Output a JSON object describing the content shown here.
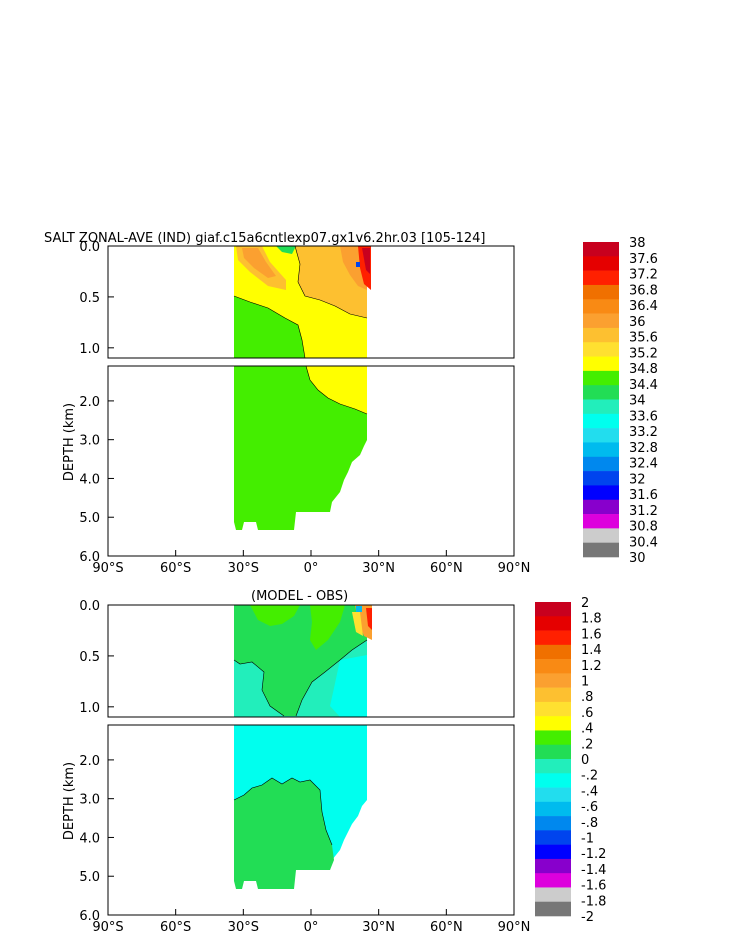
{
  "chart_data": [
    {
      "type": "heatmap",
      "title": "SALT ZONAL-AVE (IND) giaf.c15a6cntlexp07.gx1v6.2hr.03 [105-124]",
      "ylabel": "DEPTH (km)",
      "x_tick_labels": [
        "90°S",
        "60°S",
        "30°S",
        "0°",
        "30°N",
        "60°N",
        "90°N"
      ],
      "y_tick_labels_upper": [
        "0.0",
        "0.5",
        "1.0"
      ],
      "y_tick_labels_lower": [
        "2.0",
        "3.0",
        "4.0",
        "5.0",
        "6.0"
      ],
      "xlim": [
        -90,
        90
      ],
      "ylim": [
        0,
        6
      ],
      "colorbar_labels": [
        "38",
        "37.6",
        "37.2",
        "36.8",
        "36.4",
        "36",
        "35.6",
        "35.2",
        "34.8",
        "34.4",
        "34",
        "33.6",
        "33.2",
        "32.8",
        "32.4",
        "32",
        "31.6",
        "31.2",
        "30.8",
        "30.4",
        "30"
      ],
      "colorbar_colors": [
        "#c8001e",
        "#e50000",
        "#ff2000",
        "#f07000",
        "#f98a14",
        "#fba030",
        "#fdc030",
        "#ffe030",
        "#ffff00",
        "#44ee00",
        "#22dd55",
        "#22eebb",
        "#00ffee",
        "#22ddee",
        "#00bbee",
        "#0088ee",
        "#0044ee",
        "#0000ff",
        "#8800cc",
        "#dd00dd",
        "#cccccc",
        "#777777"
      ]
    },
    {
      "type": "heatmap",
      "title": "(MODEL - OBS)",
      "ylabel": "DEPTH (km)",
      "x_tick_labels": [
        "90°S",
        "60°S",
        "30°S",
        "0°",
        "30°N",
        "60°N",
        "90°N"
      ],
      "y_tick_labels_upper": [
        "0.0",
        "0.5",
        "1.0"
      ],
      "y_tick_labels_lower": [
        "2.0",
        "3.0",
        "4.0",
        "5.0",
        "6.0"
      ],
      "xlim": [
        -90,
        90
      ],
      "ylim": [
        0,
        6
      ],
      "colorbar_labels": [
        "2",
        "1.8",
        "1.6",
        "1.4",
        "1.2",
        "1",
        ".8",
        ".6",
        ".4",
        ".2",
        "0",
        "-.2",
        "-.4",
        "-.6",
        "-.8",
        "-1",
        "-1.2",
        "-1.4",
        "-1.6",
        "-1.8",
        "-2"
      ],
      "colorbar_colors": [
        "#c8001e",
        "#e50000",
        "#ff2000",
        "#f07000",
        "#f98a14",
        "#fba030",
        "#fdc030",
        "#ffe030",
        "#ffff00",
        "#44ee00",
        "#22dd55",
        "#22eebb",
        "#00ffee",
        "#22ddee",
        "#00bbee",
        "#0088ee",
        "#0044ee",
        "#0000ff",
        "#8800cc",
        "#dd00dd",
        "#cccccc",
        "#777777"
      ]
    }
  ]
}
